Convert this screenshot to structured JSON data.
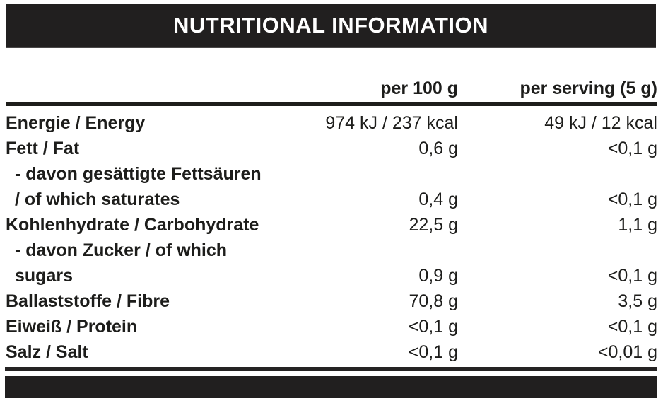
{
  "title": "NUTRITIONAL INFORMATION",
  "colors": {
    "bar_black": "#211f1f",
    "text": "#1d1d1b",
    "background": "#ffffff",
    "title_text": "#ffffff"
  },
  "table": {
    "columns": [
      "",
      "per 100 g",
      "per serving (5 g)"
    ],
    "rows": [
      {
        "label": "Energie / Energy",
        "per_100g": "974 kJ / 237 kcal",
        "per_serving": "49 kJ / 12 kcal"
      },
      {
        "label": "Fett / Fat",
        "per_100g": "0,6 g",
        "per_serving": "<0,1 g"
      },
      {
        "label": "- davon gesättigte Fettsäuren\n/ of which saturates",
        "per_100g": "0,4 g",
        "per_serving": "<0,1 g"
      },
      {
        "label": "Kohlenhydrate / Carbohydrate",
        "per_100g": "22,5 g",
        "per_serving": "1,1 g"
      },
      {
        "label": "- davon Zucker / of which\nsugars",
        "per_100g": "0,9 g",
        "per_serving": "<0,1 g"
      },
      {
        "label": "Ballaststoffe / Fibre",
        "per_100g": "70,8 g",
        "per_serving": "3,5 g"
      },
      {
        "label": "Eiweiß / Protein",
        "per_100g": "<0,1 g",
        "per_serving": "<0,1 g"
      },
      {
        "label": "Salz / Salt",
        "per_100g": "<0,1 g",
        "per_serving": "<0,01 g"
      }
    ]
  }
}
